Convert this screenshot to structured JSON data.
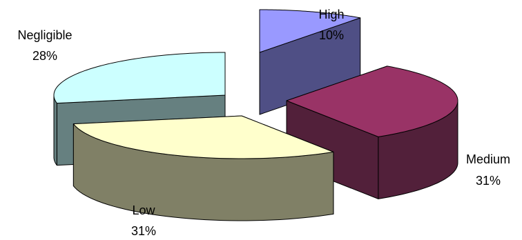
{
  "chart_data": {
    "type": "pie",
    "style": "3d-exploded",
    "slices": [
      {
        "name": "High",
        "value": 10,
        "label": "10%",
        "top_color": "#9999FF",
        "side_color": "#4F4F85"
      },
      {
        "name": "Medium",
        "value": 31,
        "label": "31%",
        "top_color": "#993366",
        "side_color": "#52203A"
      },
      {
        "name": "Low",
        "value": 31,
        "label": "31%",
        "top_color": "#FFFFCC",
        "side_color": "#808066"
      },
      {
        "name": "Negligible",
        "value": 28,
        "label": "28%",
        "top_color": "#CCFFFF",
        "side_color": "#668080"
      }
    ]
  }
}
